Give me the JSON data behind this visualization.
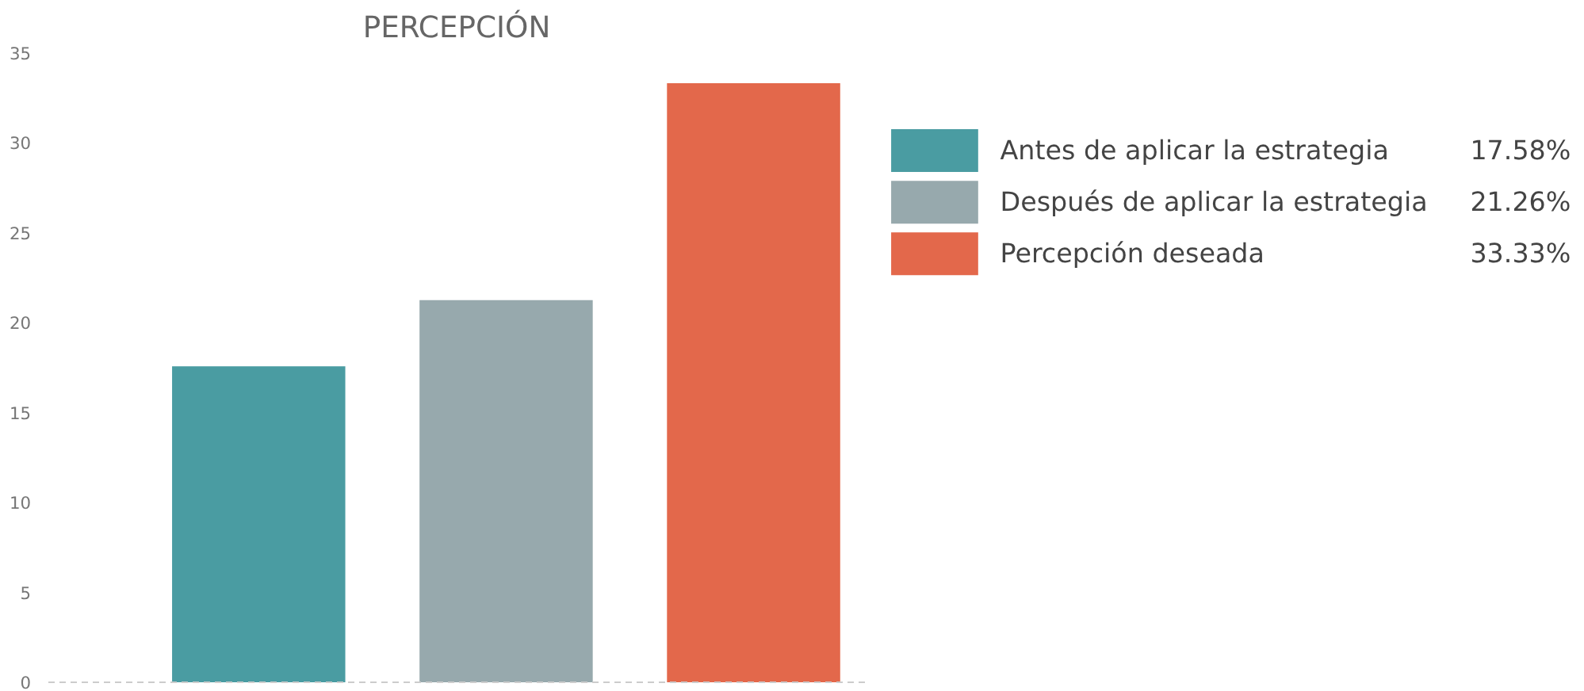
{
  "chart_data": {
    "type": "bar",
    "title": "PERCEPCIÓN",
    "categories": [
      null,
      null,
      null
    ],
    "series": [
      {
        "name": "Antes de aplicar la estrategia",
        "color": "#4a9ca2",
        "values": [
          17.58,
          null,
          null
        ]
      },
      {
        "name": "Después de aplicar la estrategia",
        "color": "#97a9ad",
        "values": [
          null,
          21.26,
          null
        ]
      },
      {
        "name": "Percepción deseada",
        "color": "#e3684b",
        "values": [
          null,
          null,
          33.33
        ]
      }
    ],
    "annotations": [
      "17.58%",
      "21.26%",
      "33.33%"
    ],
    "ylim": [
      0,
      35
    ],
    "yticks": [
      0,
      5,
      10,
      15,
      20,
      25,
      30,
      35
    ],
    "grid": false,
    "legend": "right"
  }
}
